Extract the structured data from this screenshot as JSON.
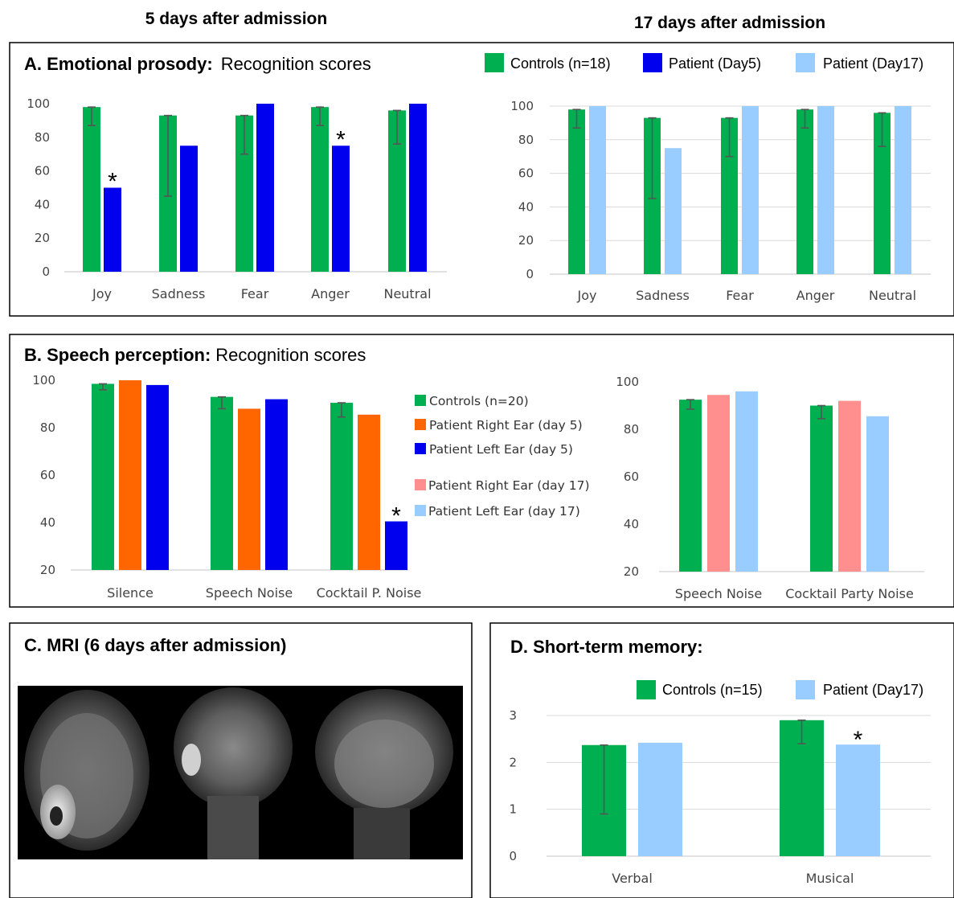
{
  "headings": {
    "day5": "5 days after admission",
    "day17": "17 days after admission"
  },
  "colors": {
    "controls": "#00b050",
    "patient_day5": "#0000ee",
    "patient_day17": "#99ccff",
    "right_ear_day5": "#ff6600",
    "left_ear_day5": "#0000ee",
    "right_ear_day17": "#ff8f8f",
    "left_ear_day17": "#99ccff"
  },
  "panelA": {
    "title_bold": "A. Emotional prosody:",
    "title_rest": "Recognition scores",
    "legend": [
      "Controls (n=18)",
      "Patient (Day5)",
      "Patient (Day17)"
    ]
  },
  "panelB": {
    "title_bold": "B. Speech perception:",
    "title_rest": "Recognition scores",
    "legend": [
      "Controls (n=20)",
      "Patient Right Ear (day 5)",
      "Patient Left Ear (day 5)",
      "Patient Right Ear (day 17)",
      "Patient Left Ear (day 17)"
    ]
  },
  "panelC": {
    "title": "C. MRI (6 days after admission)",
    "image": "brain-mri-slices"
  },
  "panelD": {
    "title": "D. Short-term memory:",
    "legend": [
      "Controls (n=15)",
      "Patient (Day17)"
    ]
  },
  "chart_data": [
    {
      "id": "A_day5",
      "type": "bar",
      "categories": [
        "Joy",
        "Sadness",
        "Fear",
        "Anger",
        "Neutral"
      ],
      "ylim": [
        0,
        100
      ],
      "yticks": [
        "0",
        "20",
        "40",
        "60",
        "80",
        "100"
      ],
      "series": [
        {
          "name": "Controls (n=18)",
          "values": [
            98,
            93,
            93,
            98,
            96
          ],
          "err_low": [
            87,
            45,
            70,
            87,
            76
          ],
          "err_high": [
            98,
            93,
            93,
            98,
            96
          ]
        },
        {
          "name": "Patient (Day5)",
          "values": [
            50,
            75,
            100,
            75,
            100
          ]
        }
      ],
      "annotations": [
        {
          "category": "Joy",
          "text": "*"
        },
        {
          "category": "Anger",
          "text": "*"
        }
      ],
      "grid": false
    },
    {
      "id": "A_day17",
      "type": "bar",
      "categories": [
        "Joy",
        "Sadness",
        "Fear",
        "Anger",
        "Neutral"
      ],
      "ylim": [
        0,
        100
      ],
      "yticks": [
        "0",
        "20",
        "40",
        "60",
        "80",
        "100"
      ],
      "series": [
        {
          "name": "Controls (n=18)",
          "values": [
            98,
            93,
            93,
            98,
            96
          ],
          "err_low": [
            87,
            45,
            70,
            87,
            76
          ],
          "err_high": [
            98,
            93,
            93,
            98,
            96
          ]
        },
        {
          "name": "Patient (Day17)",
          "values": [
            100,
            75,
            100,
            100,
            100
          ]
        }
      ],
      "grid": true
    },
    {
      "id": "B_day5",
      "type": "bar",
      "categories": [
        "Silence",
        "Speech Noise",
        "Cocktail P. Noise"
      ],
      "ylim": [
        20,
        100
      ],
      "yticks": [
        "20",
        "40",
        "60",
        "80",
        "100"
      ],
      "series": [
        {
          "name": "Controls (n=20)",
          "values": [
            98.5,
            93,
            90.5
          ],
          "err_low": [
            96,
            88,
            84.5
          ],
          "err_high": [
            98.5,
            93,
            90.5
          ]
        },
        {
          "name": "Patient Right Ear (day 5)",
          "values": [
            100,
            88,
            85.5
          ]
        },
        {
          "name": "Patient Left Ear (day 5)",
          "values": [
            98,
            92,
            40.5
          ]
        }
      ],
      "annotations": [
        {
          "category": "Cocktail P. Noise",
          "text": "*"
        }
      ],
      "grid": false
    },
    {
      "id": "B_day17",
      "type": "bar",
      "categories": [
        "Speech Noise",
        "Cocktail Party Noise"
      ],
      "ylim": [
        20,
        100
      ],
      "yticks": [
        "20",
        "40",
        "60",
        "80",
        "100"
      ],
      "series": [
        {
          "name": "Controls (n=20)",
          "values": [
            92.5,
            90
          ],
          "err_low": [
            88.5,
            84.5
          ],
          "err_high": [
            92.5,
            90
          ]
        },
        {
          "name": "Patient Right Ear (day 17)",
          "values": [
            94.5,
            92
          ]
        },
        {
          "name": "Patient Left Ear (day 17)",
          "values": [
            96,
            85.5
          ]
        }
      ],
      "grid": false
    },
    {
      "id": "D",
      "type": "bar",
      "categories": [
        "Verbal",
        "Musical"
      ],
      "ylim": [
        0,
        3
      ],
      "yticks": [
        "0",
        "1",
        "2",
        "3"
      ],
      "series": [
        {
          "name": "Controls (n=15)",
          "values": [
            2.37,
            2.9
          ],
          "err_low": [
            0.9,
            2.4
          ],
          "err_high": [
            2.37,
            2.9
          ]
        },
        {
          "name": "Patient (Day17)",
          "values": [
            2.42,
            2.38
          ]
        }
      ],
      "annotations": [
        {
          "category": "Musical",
          "text": "*"
        }
      ],
      "grid": true
    }
  ]
}
